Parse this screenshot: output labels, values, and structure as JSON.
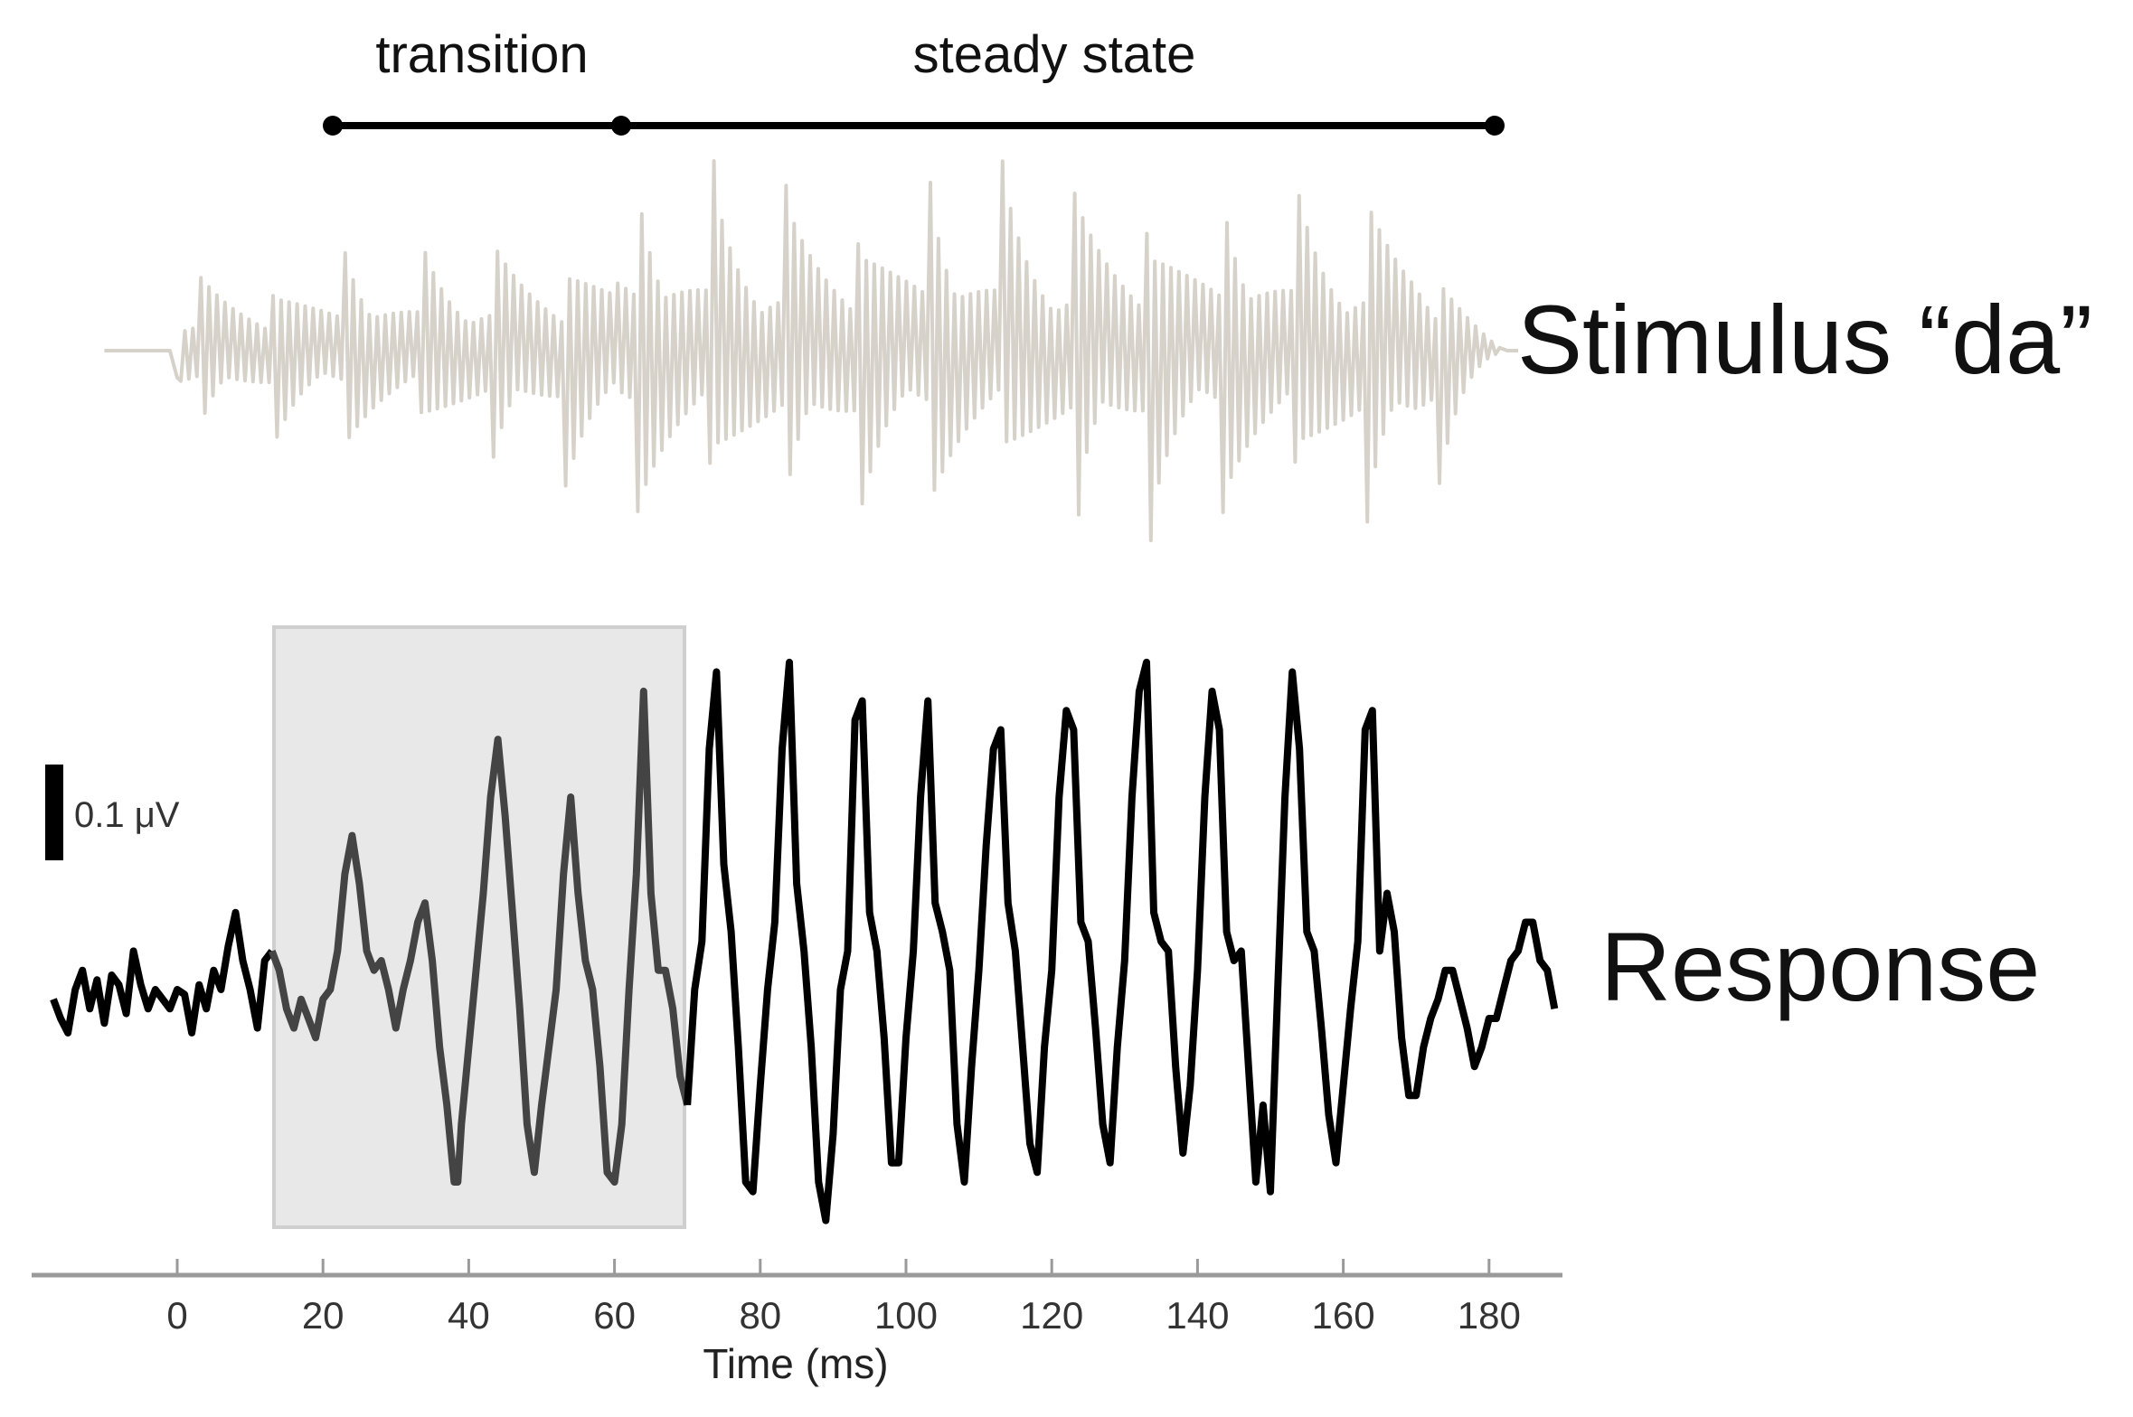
{
  "chart_data": {
    "type": "line",
    "title": "",
    "xlabel": "Time (ms)",
    "ylabel": "",
    "xlim": [
      -20,
      190
    ],
    "x_ticks": [
      0,
      20,
      40,
      60,
      80,
      100,
      120,
      140,
      160,
      180
    ],
    "grid": false,
    "legend": "none (series labeled directly on right)",
    "segments": [
      {
        "label": "transition",
        "start_ms": 20,
        "end_ms": 60
      },
      {
        "label": "steady state",
        "start_ms": 60,
        "end_ms": 180
      }
    ],
    "highlight_region": {
      "start_ms": 13,
      "end_ms": 70,
      "color": "#e8e8e8",
      "description": "shaded transition response region"
    },
    "scale_bar": {
      "label": "0.1 μV",
      "value_uV": 0.1
    },
    "series": [
      {
        "name": "Stimulus “da”",
        "color": "#d6d2ca",
        "description": "speech syllable waveform; onset ~0 ms, ends ~180 ms; periodic bursts every ~10 ms (F0 ≈ 100 Hz)",
        "onset_ms": 0,
        "offset_ms": 180,
        "period_ms": 10
      },
      {
        "name": "Response",
        "color": "#000000",
        "transition_color": "#444444",
        "units": "μV",
        "points": [
          [
            -17,
            -0.01
          ],
          [
            -16,
            -0.03
          ],
          [
            -15,
            -0.045
          ],
          [
            -14,
            0.0
          ],
          [
            -13,
            0.02
          ],
          [
            -12,
            -0.02
          ],
          [
            -11,
            0.01
          ],
          [
            -10,
            -0.035
          ],
          [
            -9,
            0.015
          ],
          [
            -8,
            0.005
          ],
          [
            -7,
            -0.025
          ],
          [
            -6,
            0.04
          ],
          [
            -5,
            0.005
          ],
          [
            -4,
            -0.02
          ],
          [
            -3,
            0.0
          ],
          [
            -2,
            -0.01
          ],
          [
            -1,
            -0.02
          ],
          [
            0,
            0.0
          ],
          [
            1,
            -0.005
          ],
          [
            2,
            -0.045
          ],
          [
            3,
            0.005
          ],
          [
            4,
            -0.02
          ],
          [
            5,
            0.02
          ],
          [
            6,
            0.0
          ],
          [
            7,
            0.045
          ],
          [
            8,
            0.08
          ],
          [
            9,
            0.03
          ],
          [
            10,
            0.0
          ],
          [
            11,
            -0.04
          ],
          [
            12,
            0.03
          ],
          [
            13,
            0.04
          ],
          [
            14,
            0.02
          ],
          [
            15,
            -0.02
          ],
          [
            16,
            -0.04
          ],
          [
            17,
            -0.01
          ],
          [
            18,
            -0.03
          ],
          [
            19,
            -0.05
          ],
          [
            20,
            -0.01
          ],
          [
            21,
            0.0
          ],
          [
            22,
            0.04
          ],
          [
            23,
            0.12
          ],
          [
            24,
            0.16
          ],
          [
            25,
            0.11
          ],
          [
            26,
            0.04
          ],
          [
            27,
            0.02
          ],
          [
            28,
            0.03
          ],
          [
            29,
            0.0
          ],
          [
            30,
            -0.04
          ],
          [
            31,
            0.0
          ],
          [
            32,
            0.03
          ],
          [
            33,
            0.07
          ],
          [
            34,
            0.09
          ],
          [
            35,
            0.03
          ],
          [
            36,
            -0.06
          ],
          [
            37,
            -0.12
          ],
          [
            38,
            -0.2
          ],
          [
            38.5,
            -0.2
          ],
          [
            39,
            -0.14
          ],
          [
            40,
            -0.06
          ],
          [
            41,
            0.02
          ],
          [
            42,
            0.1
          ],
          [
            43,
            0.2
          ],
          [
            44,
            0.26
          ],
          [
            45,
            0.18
          ],
          [
            46,
            0.08
          ],
          [
            47,
            -0.02
          ],
          [
            48,
            -0.14
          ],
          [
            49,
            -0.19
          ],
          [
            50,
            -0.12
          ],
          [
            51,
            -0.06
          ],
          [
            52,
            0.0
          ],
          [
            53,
            0.12
          ],
          [
            54,
            0.2
          ],
          [
            55,
            0.1
          ],
          [
            56,
            0.03
          ],
          [
            57,
            0.0
          ],
          [
            58,
            -0.08
          ],
          [
            59,
            -0.19
          ],
          [
            60,
            -0.2
          ],
          [
            61,
            -0.14
          ],
          [
            62,
            0.0
          ],
          [
            63,
            0.12
          ],
          [
            64,
            0.31
          ],
          [
            65,
            0.1
          ],
          [
            66,
            0.02
          ],
          [
            67,
            0.02
          ],
          [
            68,
            -0.02
          ],
          [
            69,
            -0.09
          ],
          [
            70,
            -0.12
          ],
          [
            71,
            0.0
          ],
          [
            72,
            0.05
          ],
          [
            73,
            0.25
          ],
          [
            74,
            0.33
          ],
          [
            75,
            0.13
          ],
          [
            76,
            0.06
          ],
          [
            77,
            -0.06
          ],
          [
            78,
            -0.2
          ],
          [
            79,
            -0.21
          ],
          [
            80,
            -0.1
          ],
          [
            81,
            0.0
          ],
          [
            82,
            0.07
          ],
          [
            83,
            0.25
          ],
          [
            84,
            0.34
          ],
          [
            85,
            0.11
          ],
          [
            86,
            0.04
          ],
          [
            87,
            -0.06
          ],
          [
            88,
            -0.2
          ],
          [
            89,
            -0.24
          ],
          [
            90,
            -0.15
          ],
          [
            91,
            0.0
          ],
          [
            92,
            0.04
          ],
          [
            93,
            0.28
          ],
          [
            94,
            0.3
          ],
          [
            95,
            0.08
          ],
          [
            96,
            0.04
          ],
          [
            97,
            -0.05
          ],
          [
            98,
            -0.18
          ],
          [
            99,
            -0.18
          ],
          [
            100,
            -0.05
          ],
          [
            101,
            0.04
          ],
          [
            102,
            0.2
          ],
          [
            103,
            0.3
          ],
          [
            104,
            0.09
          ],
          [
            105,
            0.06
          ],
          [
            106,
            0.02
          ],
          [
            107,
            -0.14
          ],
          [
            108,
            -0.2
          ],
          [
            109,
            -0.08
          ],
          [
            110,
            0.02
          ],
          [
            111,
            0.15
          ],
          [
            112,
            0.25
          ],
          [
            113,
            0.27
          ],
          [
            114,
            0.09
          ],
          [
            115,
            0.04
          ],
          [
            116,
            -0.06
          ],
          [
            117,
            -0.16
          ],
          [
            118,
            -0.19
          ],
          [
            119,
            -0.06
          ],
          [
            120,
            0.02
          ],
          [
            121,
            0.2
          ],
          [
            122,
            0.29
          ],
          [
            123,
            0.27
          ],
          [
            124,
            0.07
          ],
          [
            125,
            0.05
          ],
          [
            126,
            -0.04
          ],
          [
            127,
            -0.14
          ],
          [
            128,
            -0.18
          ],
          [
            129,
            -0.06
          ],
          [
            130,
            0.03
          ],
          [
            131,
            0.2
          ],
          [
            132,
            0.31
          ],
          [
            133,
            0.34
          ],
          [
            134,
            0.08
          ],
          [
            135,
            0.05
          ],
          [
            136,
            0.04
          ],
          [
            137,
            -0.08
          ],
          [
            138,
            -0.17
          ],
          [
            139,
            -0.1
          ],
          [
            140,
            0.02
          ],
          [
            141,
            0.2
          ],
          [
            142,
            0.31
          ],
          [
            143,
            0.27
          ],
          [
            144,
            0.06
          ],
          [
            145,
            0.03
          ],
          [
            146,
            0.04
          ],
          [
            147,
            -0.08
          ],
          [
            148,
            -0.2
          ],
          [
            149,
            -0.12
          ],
          [
            150,
            -0.21
          ],
          [
            151,
            0.0
          ],
          [
            152,
            0.2
          ],
          [
            153,
            0.33
          ],
          [
            154,
            0.25
          ],
          [
            155,
            0.06
          ],
          [
            156,
            0.04
          ],
          [
            157,
            -0.04
          ],
          [
            158,
            -0.13
          ],
          [
            159,
            -0.18
          ],
          [
            160,
            -0.1
          ],
          [
            161,
            -0.02
          ],
          [
            162,
            0.05
          ],
          [
            163,
            0.27
          ],
          [
            164,
            0.29
          ],
          [
            165,
            0.04
          ],
          [
            166,
            0.1
          ],
          [
            167,
            0.06
          ],
          [
            168,
            -0.05
          ],
          [
            169,
            -0.11
          ],
          [
            170,
            -0.11
          ],
          [
            171,
            -0.06
          ],
          [
            172,
            -0.03
          ],
          [
            173,
            -0.01
          ],
          [
            174,
            0.02
          ],
          [
            175,
            0.02
          ],
          [
            176,
            -0.01
          ],
          [
            177,
            -0.04
          ],
          [
            178,
            -0.08
          ],
          [
            179,
            -0.06
          ],
          [
            180,
            -0.03
          ],
          [
            181,
            -0.03
          ],
          [
            182,
            0.0
          ],
          [
            183,
            0.03
          ],
          [
            184,
            0.04
          ],
          [
            185,
            0.07
          ],
          [
            186,
            0.07
          ],
          [
            187,
            0.03
          ],
          [
            188,
            0.02
          ],
          [
            189,
            -0.02
          ]
        ]
      }
    ]
  },
  "labels": {
    "transition": "transition",
    "steady_state": "steady state",
    "stimulus": "Stimulus “da”",
    "response": "Response",
    "scale_bar": "0.1 μV",
    "x_axis_title": "Time (ms)",
    "ticks": [
      "0",
      "20",
      "40",
      "60",
      "80",
      "100",
      "120",
      "140",
      "160",
      "180"
    ]
  }
}
